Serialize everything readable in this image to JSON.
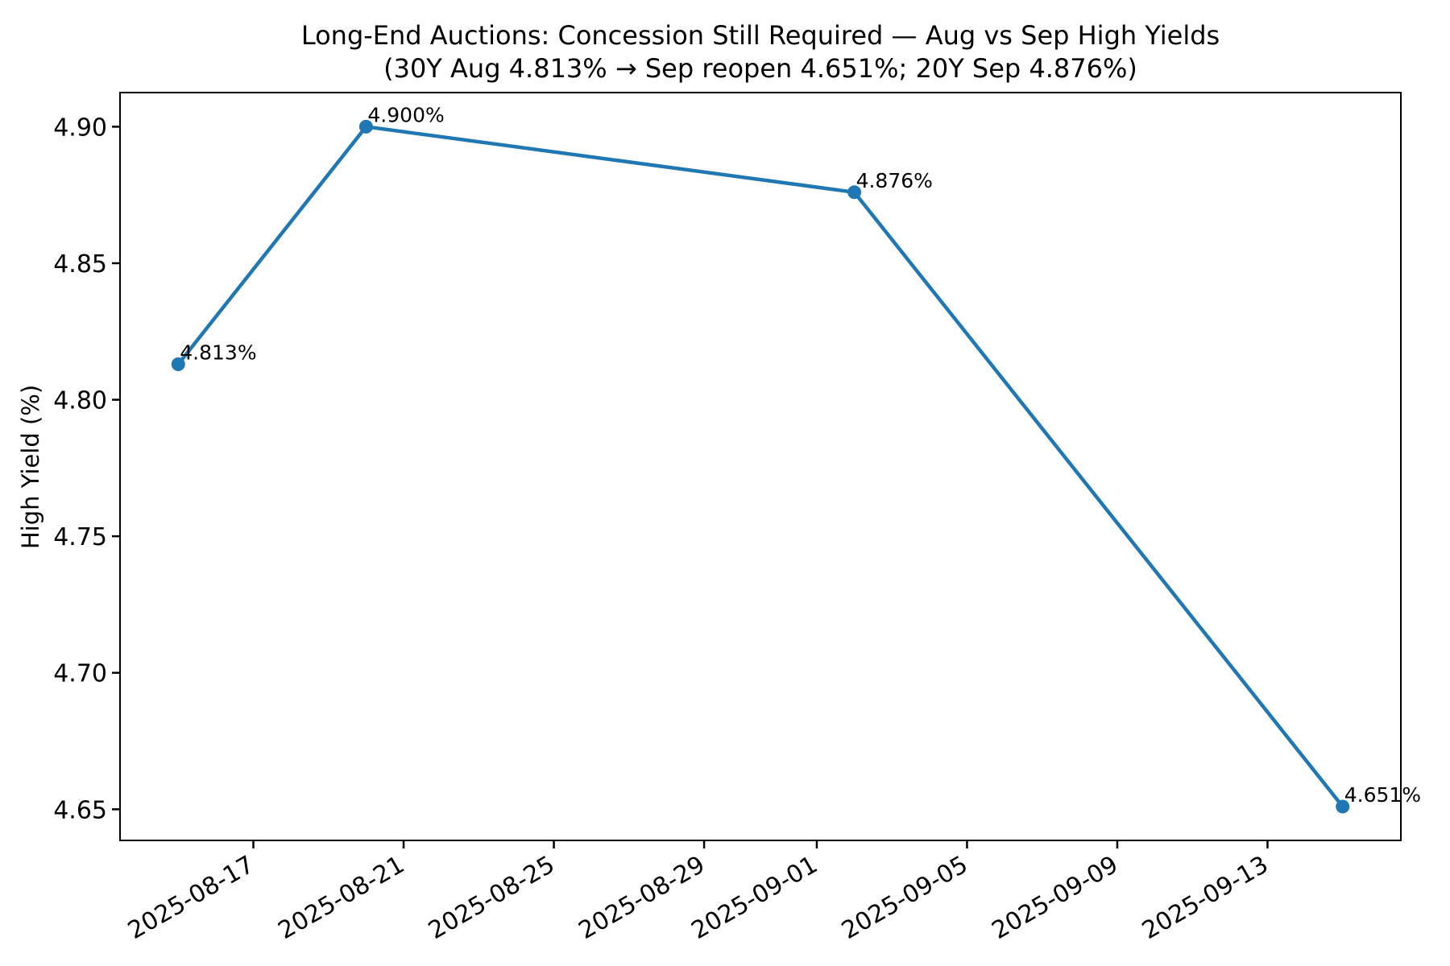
{
  "figure": {
    "background": "#ffffff",
    "text_color": "#000000"
  },
  "chart_data": {
    "type": "line",
    "title": "Long-End Auctions: Concession Still Required — Aug vs Sep High Yields",
    "subtitle": "(30Y Aug 4.813% → Sep reopen 4.651%; 20Y Sep 4.876%)",
    "xlabel": "",
    "ylabel": "High Yield (%)",
    "x": [
      "2025-08-15",
      "2025-08-20",
      "2025-09-02",
      "2025-09-15"
    ],
    "series": [
      {
        "name": "High Yield",
        "color": "#1f77b4",
        "values": [
          4.813,
          4.9,
          4.876,
          4.651
        ]
      }
    ],
    "point_labels": [
      "4.813%",
      "4.900%",
      "4.876%",
      "4.651%"
    ],
    "x_ticks": [
      "2025-08-17",
      "2025-08-21",
      "2025-08-25",
      "2025-08-29",
      "2025-09-01",
      "2025-09-05",
      "2025-09-09",
      "2025-09-13"
    ],
    "x_tick_rotation_deg": 30,
    "y_ticks": [
      4.65,
      4.7,
      4.75,
      4.8,
      4.85,
      4.9
    ],
    "ylim": [
      4.6386,
      4.9125
    ],
    "xlim_margin_frac": 0.05,
    "grid": false,
    "legend": "none",
    "marker": "circle"
  }
}
